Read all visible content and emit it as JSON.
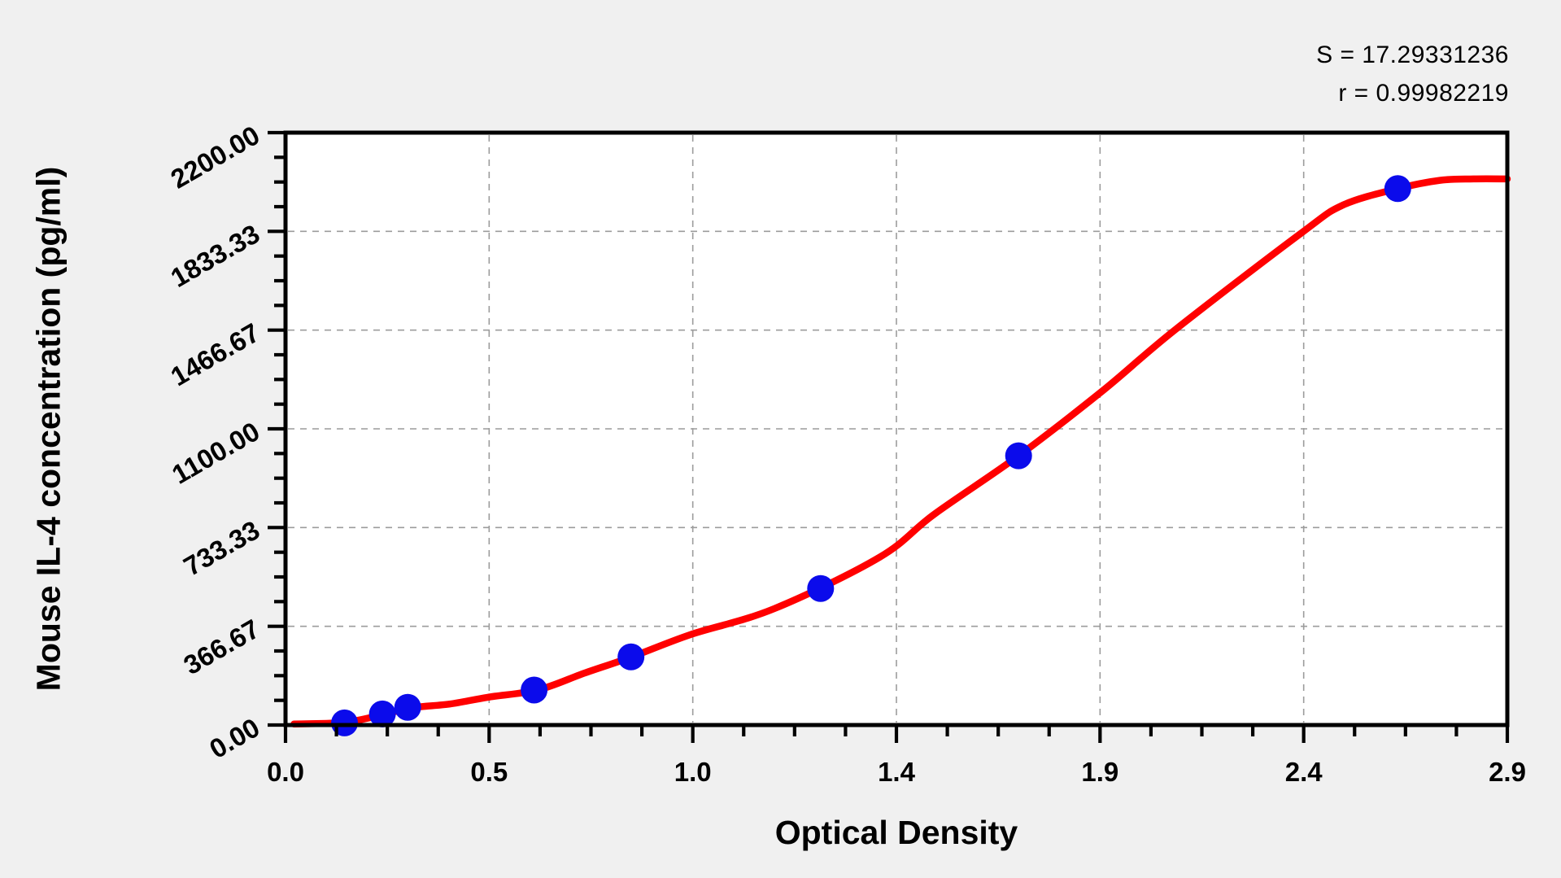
{
  "page": {
    "background": "#f0f0f0"
  },
  "stats_box": {
    "s_line": "S = 17.29331236",
    "r_line": "r = 0.99982219"
  },
  "chart_data": {
    "type": "scatter",
    "title": "",
    "xlabel": "Optical Density",
    "ylabel": "Mouse IL-4 concentration (pg/ml)",
    "xlim": [
      0,
      2.9
    ],
    "ylim": [
      0,
      2200
    ],
    "x_tick_labels": [
      "0.0",
      "0.5",
      "1.0",
      "1.4",
      "1.9",
      "2.4",
      "2.9"
    ],
    "y_tick_labels": [
      "0.00",
      "366.67",
      "733.33",
      "1100.00",
      "1466.67",
      "1833.33",
      "2200.00"
    ],
    "x_major_step": 0.483333,
    "y_major_step": 366.6667,
    "minor_ticks_per_major": 3,
    "grid": {
      "on_major": true,
      "style": "dashed",
      "color": "#9c9c9c"
    },
    "legend_position": "none",
    "S": 17.29331236,
    "r": 0.99982219,
    "colors": {
      "point": "#0b0beb",
      "curve": "#ff0000",
      "axis": "#000000",
      "plot_bg": "#ffffff"
    },
    "series": [
      {
        "name": "standard-points",
        "type": "scatter",
        "marker": "circle",
        "color": "#0b0beb",
        "points": [
          {
            "od": 0.14,
            "conc": 8
          },
          {
            "od": 0.23,
            "conc": 41
          },
          {
            "od": 0.29,
            "conc": 66
          },
          {
            "od": 0.59,
            "conc": 130
          },
          {
            "od": 0.82,
            "conc": 253
          },
          {
            "od": 1.27,
            "conc": 507
          },
          {
            "od": 1.74,
            "conc": 1000
          },
          {
            "od": 2.64,
            "conc": 1992
          }
        ]
      },
      {
        "name": "4pl-fit-curve",
        "type": "line",
        "color": "#ff0000",
        "points": [
          [
            0.02,
            4
          ],
          [
            0.14,
            10
          ],
          [
            0.23,
            38
          ],
          [
            0.3,
            64
          ],
          [
            0.39,
            78
          ],
          [
            0.48,
            103
          ],
          [
            0.6,
            131
          ],
          [
            0.71,
            193
          ],
          [
            0.82,
            252
          ],
          [
            0.96,
            335
          ],
          [
            1.16,
            432
          ],
          [
            1.41,
            623
          ],
          [
            1.54,
            783
          ],
          [
            1.74,
            1000
          ],
          [
            1.94,
            1242
          ],
          [
            2.11,
            1466
          ],
          [
            2.41,
            1826
          ],
          [
            2.51,
            1931
          ],
          [
            2.64,
            1992
          ],
          [
            2.74,
            2023
          ],
          [
            2.82,
            2028
          ],
          [
            2.9,
            2028
          ]
        ]
      }
    ]
  }
}
